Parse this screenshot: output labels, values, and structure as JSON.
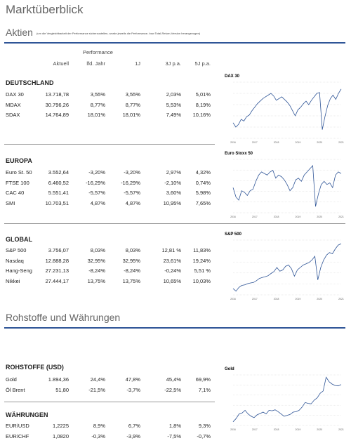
{
  "header": {
    "title": "Marktüberblick"
  },
  "sections": [
    {
      "title": "Aktien",
      "note": "(um die Vergleichbarkeit der Performance sicherzustellen, wurde jeweils die Performance- bzw Total-Return-Version herangezogen)",
      "performance_label": "Performance",
      "columns": [
        "Aktuell",
        "lfd. Jahr",
        "1J",
        "3J p.a.",
        "5J p.a."
      ],
      "groups": [
        {
          "title": "DEUTSCHLAND",
          "rows": [
            [
              "DAX 30",
              "13.718,78",
              "3,55%",
              "3,55%",
              "2,03%",
              "5,01%"
            ],
            [
              "MDAX",
              "30.796,26",
              "8,77%",
              "8,77%",
              "5,53%",
              "8,19%"
            ],
            [
              "SDAX",
              "14.764,89",
              "18,01%",
              "18,01%",
              "7,49%",
              "10,16%"
            ]
          ],
          "chart": {
            "type": "line",
            "title": "DAX 30",
            "xlabels": [
              "2016",
              "2017",
              "2018",
              "2019",
              "2020",
              "2021"
            ],
            "ylim": [
              8000,
              14500
            ],
            "color": "#2f5597",
            "values": [
              9800,
              9300,
              9600,
              10200,
              10000,
              10500,
              10700,
              11200,
              11600,
              12000,
              12300,
              12600,
              12800,
              13000,
              13200,
              12900,
              12400,
              12600,
              12800,
              12500,
              12200,
              11800,
              11200,
              10600,
              11300,
              11600,
              12000,
              12300,
              11900,
              12400,
              12800,
              13200,
              13300,
              9000,
              10500,
              11800,
              12600,
              13000,
              12500,
              13200,
              13700
            ]
          }
        },
        {
          "title": "EUROPA",
          "rows": [
            [
              "Euro St. 50",
              "3.552,64",
              "-3,20%",
              "-3,20%",
              "2,97%",
              "4,32%"
            ],
            [
              "FTSE 100",
              "6.460,52",
              "-16,29%",
              "-16,29%",
              "-2,10%",
              "0,74%"
            ],
            [
              "CAC 40",
              "5.551,41",
              "-5,57%",
              "-5,57%",
              "3,60%",
              "5,98%"
            ],
            [
              "SMI",
              "10.703,51",
              "4,87%",
              "4,87%",
              "10,95%",
              "7,65%"
            ]
          ],
          "chart": {
            "type": "line",
            "title": "Euro Stoxx 50",
            "xlabels": [
              "2016",
              "2017",
              "2018",
              "2019",
              "2020",
              "2021"
            ],
            "ylim": [
              2300,
              4000
            ],
            "color": "#2f5597",
            "values": [
              3100,
              2800,
              2700,
              3000,
              2950,
              2850,
              3000,
              3050,
              3300,
              3500,
              3600,
              3550,
              3500,
              3600,
              3650,
              3400,
              3500,
              3450,
              3350,
              3200,
              3000,
              3100,
              3350,
              3400,
              3300,
              3500,
              3600,
              3700,
              3800,
              2500,
              2900,
              3200,
              3300,
              3200,
              3250,
              3100,
              3500,
              3600,
              3550
            ]
          }
        },
        {
          "title": "GLOBAL",
          "rows": [
            [
              "S&P 500",
              "3.756,07",
              "8,03%",
              "8,03%",
              "12,81 %",
              "11,83%"
            ],
            [
              "Nasdaq",
              "12.888,28",
              "32,95%",
              "32,95%",
              "23,61%",
              "19,24%"
            ],
            [
              "Hang-Seng",
              "27.231,13",
              "-8,24%",
              "-8,24%",
              "-0,24%",
              "5,51 %"
            ],
            [
              "Nikkei",
              "27.444,17",
              "13,75%",
              "13,75%",
              "10,65%",
              "10,03%"
            ]
          ],
          "chart": {
            "type": "line",
            "title": "S&P 500",
            "xlabels": [
              "2016",
              "2017",
              "2018",
              "2019",
              "2020",
              "2021"
            ],
            "ylim": [
              1700,
              3900
            ],
            "color": "#2f5597",
            "values": [
              1950,
              1850,
              2000,
              2080,
              2100,
              2150,
              2180,
              2200,
              2270,
              2360,
              2400,
              2430,
              2470,
              2560,
              2640,
              2800,
              2650,
              2700,
              2850,
              2900,
              2750,
              2450,
              2700,
              2800,
              2900,
              2950,
              3000,
              3100,
              3250,
              2300,
              2800,
              3100,
              3300,
              3400,
              3350,
              3550,
              3700,
              3756
            ]
          }
        }
      ]
    },
    {
      "title": "Rohstoffe und Währungen",
      "groups": [
        {
          "title": "ROHSTOFFE (USD)",
          "rows": [
            [
              "Gold",
              "1.894,36",
              "24,4%",
              "47,8%",
              "45,4%",
              "69,9%"
            ],
            [
              "Öl Brent",
              "51,80",
              "-21,5%",
              "-3,7%",
              "-22,5%",
              "7,1%"
            ]
          ],
          "chart": {
            "type": "line",
            "title": "Gold",
            "xlabels": [
              "2016",
              "2017",
              "2018",
              "2019",
              "2020",
              "2021"
            ],
            "ylim": [
              1000,
              2100
            ],
            "color": "#2f5597",
            "values": [
              1080,
              1150,
              1250,
              1270,
              1330,
              1250,
              1200,
              1170,
              1230,
              1260,
              1290,
              1250,
              1330,
              1320,
              1340,
              1300,
              1250,
              1200,
              1220,
              1240,
              1290,
              1300,
              1330,
              1400,
              1500,
              1480,
              1470,
              1550,
              1600,
              1700,
              1750,
              2050,
              1950,
              1900,
              1870,
              1860,
              1890
            ]
          }
        },
        {
          "title": "WÄHRUNGEN",
          "rows": [
            [
              "EUR/USD",
              "1,2225",
              "8,9%",
              "6,7%",
              "1,8%",
              "9,3%"
            ],
            [
              "EUR/CHF",
              "1,0820",
              "-0,3%",
              "-3,9%",
              "-7,5%",
              "-0,7%"
            ]
          ]
        }
      ]
    }
  ]
}
